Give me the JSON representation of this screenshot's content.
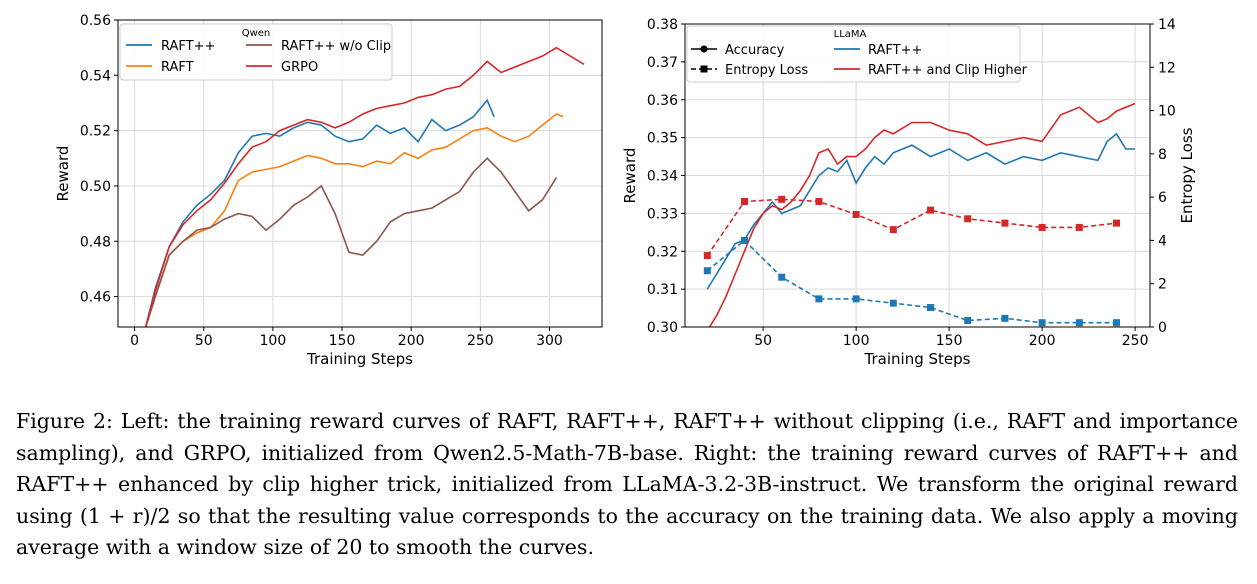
{
  "chart_data": [
    {
      "type": "line",
      "title": "Qwen",
      "xlabel": "Training Steps",
      "ylabel": "Reward",
      "xlim": [
        -12,
        338
      ],
      "ylim": [
        0.449,
        0.56
      ],
      "xticks": [
        0,
        50,
        100,
        150,
        200,
        250,
        300
      ],
      "yticks": [
        0.46,
        0.48,
        0.5,
        0.52,
        0.54,
        0.56
      ],
      "grid": true,
      "legend_position": "top-left",
      "series": [
        {
          "name": "RAFT++",
          "color": "#1f77b4",
          "x": [
            8,
            15,
            25,
            35,
            45,
            55,
            65,
            75,
            85,
            95,
            105,
            115,
            125,
            135,
            145,
            155,
            165,
            175,
            185,
            195,
            205,
            215,
            225,
            235,
            245,
            255,
            260
          ],
          "y": [
            0.449,
            0.463,
            0.478,
            0.487,
            0.493,
            0.497,
            0.502,
            0.512,
            0.518,
            0.519,
            0.518,
            0.521,
            0.523,
            0.522,
            0.518,
            0.516,
            0.517,
            0.522,
            0.519,
            0.521,
            0.516,
            0.524,
            0.52,
            0.522,
            0.525,
            0.531,
            0.525
          ]
        },
        {
          "name": "RAFT",
          "color": "#ff7f0e",
          "x": [
            8,
            15,
            25,
            35,
            45,
            55,
            65,
            75,
            85,
            95,
            105,
            115,
            125,
            135,
            145,
            155,
            165,
            175,
            185,
            195,
            205,
            215,
            225,
            235,
            245,
            255,
            265,
            275,
            285,
            295,
            305,
            310
          ],
          "y": [
            0.449,
            0.46,
            0.475,
            0.48,
            0.483,
            0.485,
            0.491,
            0.502,
            0.505,
            0.506,
            0.507,
            0.509,
            0.511,
            0.51,
            0.508,
            0.508,
            0.507,
            0.509,
            0.508,
            0.512,
            0.51,
            0.513,
            0.514,
            0.517,
            0.52,
            0.521,
            0.518,
            0.516,
            0.518,
            0.522,
            0.526,
            0.525
          ]
        },
        {
          "name": "RAFT++ w/o Clip",
          "color": "#8c564b",
          "x": [
            8,
            15,
            25,
            35,
            45,
            55,
            65,
            75,
            85,
            95,
            105,
            115,
            125,
            135,
            145,
            155,
            165,
            175,
            185,
            195,
            205,
            215,
            225,
            235,
            245,
            255,
            265,
            275,
            285,
            295,
            305
          ],
          "y": [
            0.449,
            0.46,
            0.475,
            0.48,
            0.484,
            0.485,
            0.488,
            0.49,
            0.489,
            0.484,
            0.488,
            0.493,
            0.496,
            0.5,
            0.49,
            0.476,
            0.475,
            0.48,
            0.487,
            0.49,
            0.491,
            0.492,
            0.495,
            0.498,
            0.505,
            0.51,
            0.505,
            0.498,
            0.491,
            0.495,
            0.503
          ]
        },
        {
          "name": "GRPO",
          "color": "#d62728",
          "x": [
            8,
            15,
            25,
            35,
            45,
            55,
            65,
            75,
            85,
            95,
            105,
            115,
            125,
            135,
            145,
            155,
            165,
            175,
            185,
            195,
            205,
            215,
            225,
            235,
            245,
            255,
            265,
            275,
            285,
            295,
            305,
            315,
            325
          ],
          "y": [
            0.449,
            0.462,
            0.478,
            0.486,
            0.491,
            0.495,
            0.501,
            0.508,
            0.514,
            0.516,
            0.52,
            0.522,
            0.524,
            0.523,
            0.521,
            0.523,
            0.526,
            0.528,
            0.529,
            0.53,
            0.532,
            0.533,
            0.535,
            0.536,
            0.54,
            0.545,
            0.541,
            0.543,
            0.545,
            0.547,
            0.55,
            0.547,
            0.544
          ]
        }
      ]
    },
    {
      "type": "line",
      "title": "LLaMA",
      "xlabel": "Training Steps",
      "ylabel": "Reward",
      "y2label": "Entropy Loss",
      "xlim": [
        8,
        258
      ],
      "ylim": [
        0.3,
        0.38
      ],
      "y2lim": [
        0,
        14
      ],
      "xticks": [
        50,
        100,
        150,
        200,
        250
      ],
      "yticks": [
        0.3,
        0.31,
        0.32,
        0.33,
        0.34,
        0.35,
        0.36,
        0.37,
        0.38
      ],
      "y2ticks": [
        0,
        2,
        4,
        6,
        8,
        10,
        12,
        14
      ],
      "grid": true,
      "legend_position": "top-left",
      "style_legend": [
        {
          "label": "Accuracy",
          "style": "solid-circle"
        },
        {
          "label": "Entropy Loss",
          "style": "dashed-square"
        }
      ],
      "series": [
        {
          "name": "RAFT++",
          "color": "#1f77b4",
          "kind": "accuracy",
          "x": [
            20,
            25,
            30,
            35,
            40,
            45,
            50,
            55,
            60,
            65,
            70,
            75,
            80,
            85,
            90,
            95,
            100,
            105,
            110,
            115,
            120,
            130,
            140,
            150,
            160,
            170,
            180,
            190,
            200,
            210,
            220,
            230,
            235,
            240,
            245,
            250
          ],
          "y": [
            0.31,
            0.314,
            0.318,
            0.322,
            0.323,
            0.327,
            0.33,
            0.333,
            0.33,
            0.331,
            0.332,
            0.336,
            0.34,
            0.342,
            0.341,
            0.344,
            0.338,
            0.342,
            0.345,
            0.343,
            0.346,
            0.348,
            0.345,
            0.347,
            0.344,
            0.346,
            0.343,
            0.345,
            0.344,
            0.346,
            0.345,
            0.344,
            0.349,
            0.351,
            0.347,
            0.347
          ]
        },
        {
          "name": "RAFT++ and Clip Higher",
          "color": "#d62728",
          "kind": "accuracy",
          "x": [
            20,
            25,
            30,
            35,
            40,
            45,
            50,
            55,
            60,
            65,
            70,
            75,
            80,
            85,
            90,
            95,
            100,
            105,
            110,
            115,
            120,
            130,
            140,
            150,
            160,
            170,
            180,
            190,
            200,
            210,
            220,
            230,
            235,
            240,
            245,
            250
          ],
          "y": [
            0.299,
            0.303,
            0.308,
            0.314,
            0.32,
            0.326,
            0.33,
            0.332,
            0.331,
            0.333,
            0.336,
            0.34,
            0.346,
            0.347,
            0.343,
            0.345,
            0.345,
            0.347,
            0.35,
            0.352,
            0.351,
            0.354,
            0.354,
            0.352,
            0.351,
            0.348,
            0.349,
            0.35,
            0.349,
            0.356,
            0.358,
            0.354,
            0.355,
            0.357,
            0.358,
            0.359
          ]
        },
        {
          "name": "RAFT++",
          "color": "#1f77b4",
          "kind": "entropy",
          "x": [
            20,
            40,
            60,
            80,
            100,
            120,
            140,
            160,
            180,
            200,
            220,
            240
          ],
          "y": [
            2.6,
            4.0,
            2.3,
            1.3,
            1.3,
            1.1,
            0.9,
            0.3,
            0.4,
            0.2,
            0.2,
            0.2
          ]
        },
        {
          "name": "RAFT++ and Clip Higher",
          "color": "#d62728",
          "kind": "entropy",
          "x": [
            20,
            40,
            60,
            80,
            100,
            120,
            140,
            160,
            180,
            200,
            220,
            240
          ],
          "y": [
            3.3,
            5.8,
            5.9,
            5.8,
            5.2,
            4.5,
            5.4,
            5.0,
            4.8,
            4.6,
            4.6,
            4.8
          ]
        }
      ]
    }
  ],
  "caption": "Figure 2: Left: the training reward curves of RAFT, RAFT++, RAFT++ without clipping (i.e., RAFT and importance sampling), and GRPO, initialized from Qwen2.5-Math-7B-base. Right: the training reward curves of RAFT++ and RAFT++ enhanced by clip higher trick, initialized from LLaMA-3.2-3B-instruct. We transform the original reward using (1 + r)/2 so that the resulting value corresponds to the accuracy on the training data. We also apply a moving average with a window size of 20 to smooth the curves."
}
